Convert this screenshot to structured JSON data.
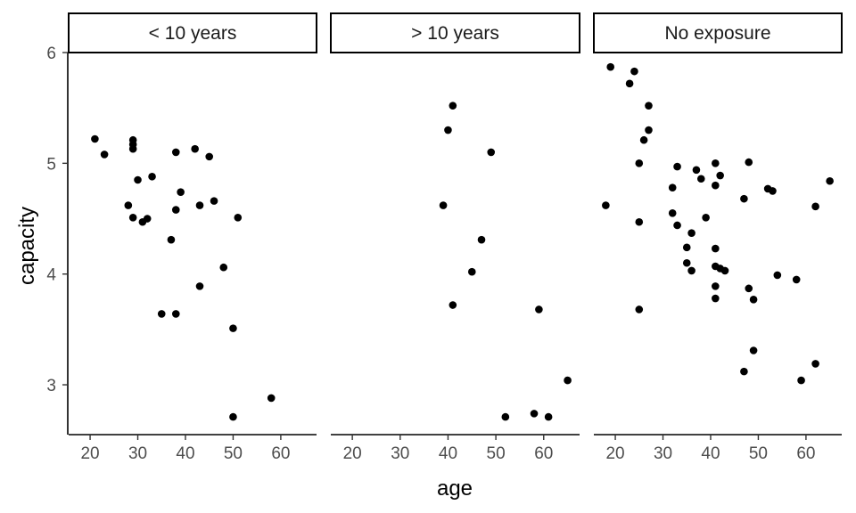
{
  "chart_data": {
    "type": "scatter",
    "xlabel": "age",
    "ylabel": "capacity",
    "xlim": [
      15.5,
      67.5
    ],
    "ylim": [
      2.55,
      6.0
    ],
    "xticks": [
      20,
      30,
      40,
      50,
      60
    ],
    "yticks": [
      3,
      4,
      5,
      6
    ],
    "grid": false,
    "point_color": "#000000",
    "facets": [
      {
        "label": "< 10 years",
        "points": [
          [
            21,
            5.22
          ],
          [
            23,
            5.08
          ],
          [
            28,
            4.62
          ],
          [
            29,
            5.21
          ],
          [
            29,
            5.17
          ],
          [
            29,
            5.13
          ],
          [
            29,
            4.51
          ],
          [
            30,
            4.85
          ],
          [
            31,
            4.47
          ],
          [
            32,
            4.5
          ],
          [
            33,
            4.88
          ],
          [
            35,
            3.64
          ],
          [
            37,
            4.31
          ],
          [
            38,
            5.1
          ],
          [
            38,
            4.58
          ],
          [
            38,
            3.64
          ],
          [
            39,
            4.74
          ],
          [
            42,
            5.13
          ],
          [
            43,
            4.62
          ],
          [
            43,
            3.89
          ],
          [
            45,
            5.06
          ],
          [
            46,
            4.66
          ],
          [
            48,
            4.06
          ],
          [
            50,
            3.51
          ],
          [
            50,
            2.71
          ],
          [
            51,
            4.51
          ],
          [
            58,
            2.88
          ]
        ]
      },
      {
        "label": "> 10 years",
        "points": [
          [
            39,
            4.62
          ],
          [
            40,
            5.3
          ],
          [
            41,
            5.52
          ],
          [
            41,
            3.72
          ],
          [
            45,
            4.02
          ],
          [
            47,
            4.31
          ],
          [
            49,
            5.1
          ],
          [
            52,
            2.71
          ],
          [
            58,
            2.74
          ],
          [
            59,
            3.68
          ],
          [
            61,
            2.71
          ],
          [
            65,
            3.04
          ]
        ]
      },
      {
        "label": "No exposure",
        "points": [
          [
            18,
            4.62
          ],
          [
            19,
            5.87
          ],
          [
            23,
            5.72
          ],
          [
            24,
            5.83
          ],
          [
            25,
            5.0
          ],
          [
            25,
            4.47
          ],
          [
            25,
            3.68
          ],
          [
            26,
            5.21
          ],
          [
            27,
            5.52
          ],
          [
            27,
            5.3
          ],
          [
            32,
            4.78
          ],
          [
            32,
            4.55
          ],
          [
            33,
            4.97
          ],
          [
            33,
            4.44
          ],
          [
            35,
            4.24
          ],
          [
            35,
            4.1
          ],
          [
            36,
            4.37
          ],
          [
            36,
            4.03
          ],
          [
            37,
            4.94
          ],
          [
            38,
            4.86
          ],
          [
            39,
            4.51
          ],
          [
            41,
            5.0
          ],
          [
            41,
            4.8
          ],
          [
            41,
            4.23
          ],
          [
            41,
            4.07
          ],
          [
            41,
            3.89
          ],
          [
            41,
            3.78
          ],
          [
            42,
            4.89
          ],
          [
            42,
            4.05
          ],
          [
            43,
            4.03
          ],
          [
            47,
            4.68
          ],
          [
            47,
            3.12
          ],
          [
            48,
            5.01
          ],
          [
            48,
            3.87
          ],
          [
            49,
            3.77
          ],
          [
            49,
            3.31
          ],
          [
            52,
            4.77
          ],
          [
            53,
            4.75
          ],
          [
            54,
            3.99
          ],
          [
            58,
            3.95
          ],
          [
            59,
            3.04
          ],
          [
            62,
            4.61
          ],
          [
            62,
            3.19
          ],
          [
            65,
            4.84
          ]
        ]
      }
    ]
  }
}
